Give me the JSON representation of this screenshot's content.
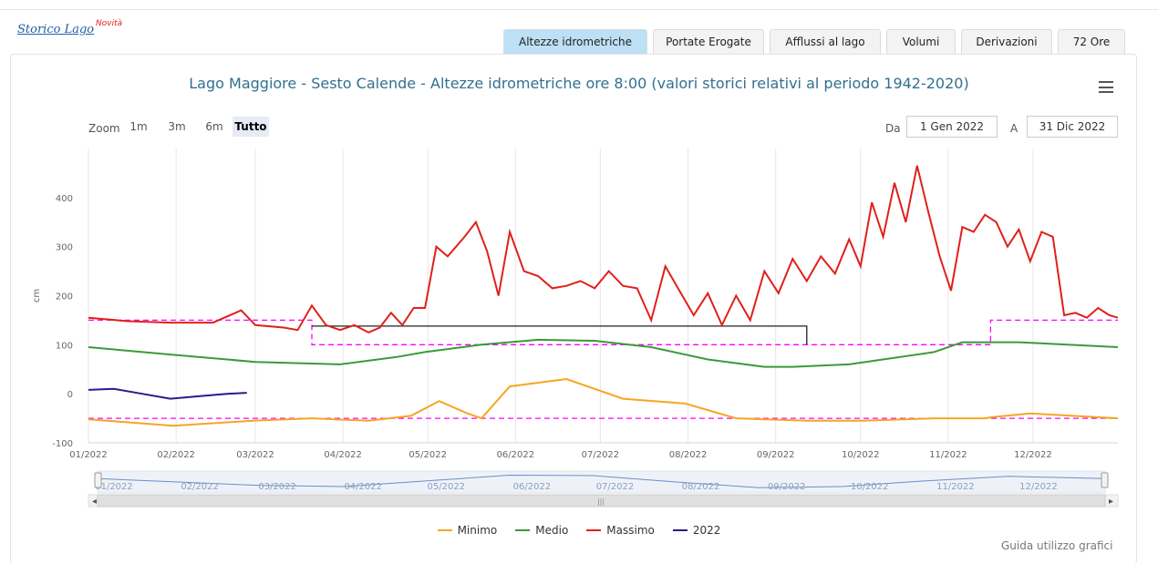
{
  "header": {
    "brand": "Storico Lago",
    "brand_badge": "Novità"
  },
  "tabs": [
    {
      "label": "Altezze idrometriche",
      "active": true
    },
    {
      "label": "Portate Erogate",
      "active": false
    },
    {
      "label": "Afflussi al lago",
      "active": false
    },
    {
      "label": "Volumi",
      "active": false
    },
    {
      "label": "Derivazioni",
      "active": false
    },
    {
      "label": "72 Ore",
      "active": false
    }
  ],
  "zoom": {
    "label": "Zoom",
    "buttons": [
      "1m",
      "3m",
      "6m",
      "Tutto"
    ],
    "selected": "Tutto"
  },
  "range": {
    "from_label": "Da",
    "from_value": "1 Gen 2022",
    "to_label": "A",
    "to_value": "31 Dic 2022"
  },
  "footer": {
    "guide_link": "Guida utilizzo grafici"
  },
  "icons": {
    "menu": "hamburger-menu-icon"
  },
  "colors": {
    "active_tab": "#bde0f5",
    "title": "#31708f"
  },
  "chart_data": {
    "type": "line",
    "title": "Lago Maggiore - Sesto Calende - Altezze idrometriche ore 8:00 (valori storici relativi al periodo 1942-2020)",
    "ylabel": "cm",
    "ylim": [
      -100,
      500
    ],
    "yticks": [
      -100,
      0,
      100,
      200,
      300,
      400
    ],
    "xticks": [
      "01/2022",
      "02/2022",
      "03/2022",
      "04/2022",
      "05/2022",
      "06/2022",
      "07/2022",
      "08/2022",
      "09/2022",
      "10/2022",
      "11/2022",
      "12/2022"
    ],
    "grid_x": true,
    "legend_position": "bottom",
    "series": [
      {
        "name": "Minimo",
        "color": "#f5a623",
        "x": [
          1,
          31,
          59,
          80,
          100,
          115,
          125,
          135,
          140,
          150,
          170,
          190,
          212,
          230,
          255,
          275,
          300,
          318,
          320,
          334,
          365
        ],
        "y": [
          -52,
          -65,
          -55,
          -50,
          -55,
          -45,
          -15,
          -40,
          -50,
          15,
          30,
          -10,
          -20,
          -50,
          -55,
          -55,
          -50,
          -50,
          -48,
          -40,
          -50
        ]
      },
      {
        "name": "Medio",
        "color": "#3a9a3a",
        "x": [
          1,
          30,
          60,
          90,
          110,
          120,
          140,
          160,
          180,
          200,
          220,
          240,
          250,
          270,
          300,
          310,
          330,
          365
        ],
        "y": [
          95,
          80,
          65,
          60,
          75,
          85,
          100,
          110,
          108,
          95,
          70,
          55,
          55,
          60,
          85,
          105,
          105,
          95
        ]
      },
      {
        "name": "Massimo",
        "color": "#e0201b",
        "x": [
          1,
          15,
          30,
          45,
          55,
          60,
          70,
          75,
          80,
          85,
          90,
          95,
          100,
          104,
          108,
          112,
          116,
          120,
          124,
          128,
          131,
          134,
          138,
          142,
          146,
          150,
          155,
          160,
          165,
          170,
          175,
          180,
          185,
          190,
          195,
          200,
          205,
          210,
          215,
          220,
          225,
          230,
          235,
          240,
          245,
          250,
          255,
          260,
          265,
          270,
          274,
          278,
          282,
          286,
          290,
          294,
          298,
          302,
          306,
          310,
          314,
          318,
          322,
          326,
          330,
          334,
          338,
          342,
          346,
          350,
          354,
          358,
          362,
          365
        ],
        "y": [
          155,
          148,
          145,
          145,
          170,
          140,
          135,
          130,
          180,
          140,
          130,
          140,
          125,
          135,
          165,
          140,
          175,
          175,
          300,
          280,
          300,
          320,
          350,
          290,
          200,
          330,
          250,
          240,
          215,
          220,
          230,
          215,
          250,
          220,
          215,
          150,
          260,
          210,
          160,
          205,
          140,
          200,
          150,
          250,
          205,
          275,
          230,
          280,
          245,
          315,
          260,
          390,
          320,
          430,
          350,
          465,
          370,
          280,
          210,
          340,
          330,
          365,
          350,
          300,
          335,
          270,
          330,
          320,
          160,
          165,
          155,
          175,
          160,
          155
        ]
      },
      {
        "name": "2022",
        "color": "#2a1a8a",
        "x": [
          1,
          10,
          20,
          30,
          40,
          50,
          57
        ],
        "y": [
          8,
          10,
          0,
          -10,
          -5,
          0,
          2
        ]
      }
    ],
    "extra_lines": [
      {
        "color": "#ff00ff",
        "dash": true,
        "x": [
          1,
          80,
          80,
          100,
          110,
          120,
          255,
          320,
          320,
          365
        ],
        "y": [
          150,
          150,
          100,
          100,
          100,
          100,
          100,
          100,
          150,
          150
        ]
      },
      {
        "color": "#ff00ff",
        "dash": true,
        "x": [
          1,
          365
        ],
        "y": [
          -50,
          -50
        ]
      },
      {
        "color": "#222222",
        "dash": false,
        "x": [
          80,
          255,
          255
        ],
        "y": [
          138,
          138,
          100
        ]
      }
    ],
    "navigator": {
      "labels": [
        "01/2022",
        "02/2022",
        "03/2022",
        "04/2022",
        "05/2022",
        "06/2022",
        "07/2022",
        "08/2022",
        "09/2022",
        "10/2022",
        "11/2022",
        "12/2022"
      ],
      "x": [
        1,
        30,
        60,
        90,
        120,
        150,
        180,
        210,
        240,
        270,
        300,
        330,
        365
      ],
      "y": [
        95,
        80,
        65,
        60,
        85,
        110,
        108,
        80,
        55,
        60,
        85,
        105,
        95
      ]
    }
  }
}
